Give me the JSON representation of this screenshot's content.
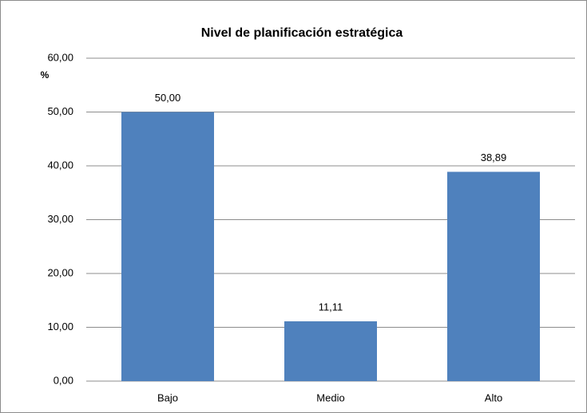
{
  "chart_data": {
    "type": "bar",
    "title": "Nivel de planificación estratégica",
    "y_label": "%",
    "categories": [
      "Bajo",
      "Medio",
      "Alto"
    ],
    "values": [
      50,
      11.11,
      38.89
    ],
    "value_labels": [
      "50,00",
      "11,11",
      "38,89"
    ],
    "color": "#4f81bd",
    "ylim": [
      0,
      60
    ],
    "yticks": [
      {
        "value": 0,
        "label": "0,00"
      },
      {
        "value": 10,
        "label": "10,00"
      },
      {
        "value": 20,
        "label": "20,00"
      },
      {
        "value": 30,
        "label": "30,00"
      },
      {
        "value": 40,
        "label": "40,00"
      },
      {
        "value": 50,
        "label": "50,00"
      },
      {
        "value": 60,
        "label": "60,00"
      }
    ],
    "grid": true
  }
}
